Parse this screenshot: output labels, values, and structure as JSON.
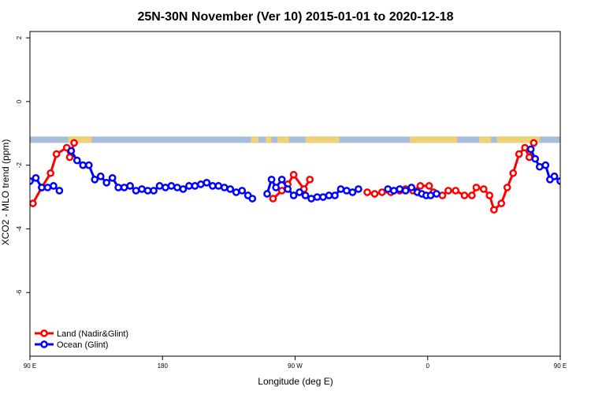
{
  "chart_data": {
    "type": "line",
    "title": "25N-30N November (Ver 10)   2015-01-01 to 2020-12-18",
    "xlabel": "Longitude (deg E)",
    "ylabel": "XCO2 - MLO trend (ppm)",
    "xlim": [
      90,
      450
    ],
    "ylim": [
      -8,
      2.2
    ],
    "x_tick_values": [
      90,
      180,
      270,
      360,
      450
    ],
    "x_tick_labels": [
      "90 E",
      "180",
      "90 W",
      "0",
      "90 E"
    ],
    "y_tick_values": [
      2,
      0,
      -2,
      -4,
      -6
    ],
    "y_tick_labels": [
      "2",
      "0",
      "-2",
      "-4",
      "-6"
    ],
    "grid": false,
    "legend_position": "bottom-left",
    "surface_strip": {
      "y_range": [
        -1.3,
        -1.1
      ],
      "ocean_color": "#a7bddb",
      "land_color": "#f2d074",
      "land_spans": [
        [
          116,
          132
        ],
        [
          240,
          245
        ],
        [
          250,
          254
        ],
        [
          258,
          266
        ],
        [
          277,
          300
        ],
        [
          348,
          380
        ],
        [
          395,
          403
        ],
        [
          407,
          436
        ]
      ]
    },
    "series": [
      {
        "name": "Land (Nadir&Glint)",
        "color": "#ff0000",
        "segments": [
          [
            [
              92,
              -3.2
            ],
            [
              98,
              -2.7
            ],
            [
              104,
              -2.25
            ],
            [
              108,
              -1.65
            ],
            [
              115,
              -1.45
            ],
            [
              117,
              -1.75
            ],
            [
              120,
              -1.3
            ]
          ],
          [
            [
              255,
              -3.05
            ],
            [
              261,
              -2.8
            ],
            [
              265,
              -2.6
            ],
            [
              269,
              -2.3
            ],
            [
              276,
              -2.75
            ],
            [
              280,
              -2.45
            ]
          ],
          [
            [
              319,
              -2.85
            ],
            [
              324,
              -2.9
            ],
            [
              329,
              -2.85
            ],
            [
              335,
              -2.85
            ],
            [
              341,
              -2.8
            ],
            [
              345,
              -2.75
            ],
            [
              350,
              -2.8
            ],
            [
              355,
              -2.65
            ],
            [
              361,
              -2.65
            ],
            [
              364,
              -2.85
            ],
            [
              370,
              -2.95
            ],
            [
              374,
              -2.8
            ],
            [
              379,
              -2.8
            ],
            [
              385,
              -2.95
            ],
            [
              390,
              -2.95
            ],
            [
              393,
              -2.7
            ],
            [
              398,
              -2.75
            ],
            [
              402,
              -2.95
            ],
            [
              405,
              -3.4
            ],
            [
              410,
              -3.2
            ],
            [
              414,
              -2.7
            ],
            [
              418,
              -2.25
            ],
            [
              422,
              -1.65
            ],
            [
              426,
              -1.45
            ],
            [
              429,
              -1.75
            ],
            [
              432,
              -1.3
            ]
          ]
        ]
      },
      {
        "name": "Ocean (Glint)",
        "color": "#0000ff",
        "segments": [
          [
            [
              118,
              -1.55
            ],
            [
              122,
              -1.85
            ],
            [
              126,
              -2.0
            ],
            [
              130,
              -2.0
            ],
            [
              134,
              -2.45
            ],
            [
              138,
              -2.35
            ],
            [
              142,
              -2.55
            ],
            [
              146,
              -2.4
            ],
            [
              150,
              -2.7
            ],
            [
              154,
              -2.7
            ],
            [
              158,
              -2.65
            ],
            [
              162,
              -2.8
            ],
            [
              166,
              -2.75
            ],
            [
              170,
              -2.8
            ],
            [
              174,
              -2.8
            ],
            [
              178,
              -2.65
            ],
            [
              182,
              -2.7
            ],
            [
              186,
              -2.65
            ],
            [
              190,
              -2.7
            ],
            [
              194,
              -2.75
            ],
            [
              198,
              -2.65
            ],
            [
              202,
              -2.65
            ],
            [
              206,
              -2.6
            ],
            [
              210,
              -2.55
            ],
            [
              214,
              -2.65
            ],
            [
              218,
              -2.65
            ],
            [
              222,
              -2.7
            ],
            [
              226,
              -2.75
            ],
            [
              230,
              -2.85
            ],
            [
              234,
              -2.8
            ],
            [
              238,
              -2.95
            ],
            [
              241,
              -3.05
            ]
          ],
          [
            [
              251,
              -2.9
            ],
            [
              254,
              -2.45
            ],
            [
              257,
              -2.7
            ],
            [
              261,
              -2.45
            ],
            [
              265,
              -2.75
            ],
            [
              269,
              -2.95
            ],
            [
              273,
              -2.85
            ],
            [
              277,
              -2.95
            ],
            [
              281,
              -3.05
            ],
            [
              285,
              -3.0
            ],
            [
              289,
              -3.0
            ],
            [
              293,
              -2.95
            ],
            [
              297,
              -2.95
            ],
            [
              301,
              -2.75
            ],
            [
              305,
              -2.8
            ],
            [
              309,
              -2.85
            ],
            [
              313,
              -2.75
            ]
          ],
          [
            [
              333,
              -2.75
            ],
            [
              337,
              -2.8
            ],
            [
              341,
              -2.75
            ],
            [
              345,
              -2.8
            ],
            [
              349,
              -2.7
            ],
            [
              353,
              -2.85
            ],
            [
              356,
              -2.9
            ],
            [
              359,
              -2.95
            ],
            [
              362,
              -2.95
            ],
            [
              366,
              -2.9
            ]
          ],
          [
            [
              430,
              -1.5
            ],
            [
              433,
              -1.8
            ],
            [
              436,
              -2.05
            ],
            [
              440,
              -2.0
            ],
            [
              443,
              -2.45
            ],
            [
              446,
              -2.35
            ],
            [
              450,
              -2.5
            ]
          ],
          [
            [
              90,
              -2.5
            ],
            [
              94,
              -2.4
            ],
            [
              98,
              -2.7
            ],
            [
              102,
              -2.7
            ],
            [
              106,
              -2.65
            ],
            [
              110,
              -2.8
            ]
          ]
        ]
      }
    ]
  }
}
